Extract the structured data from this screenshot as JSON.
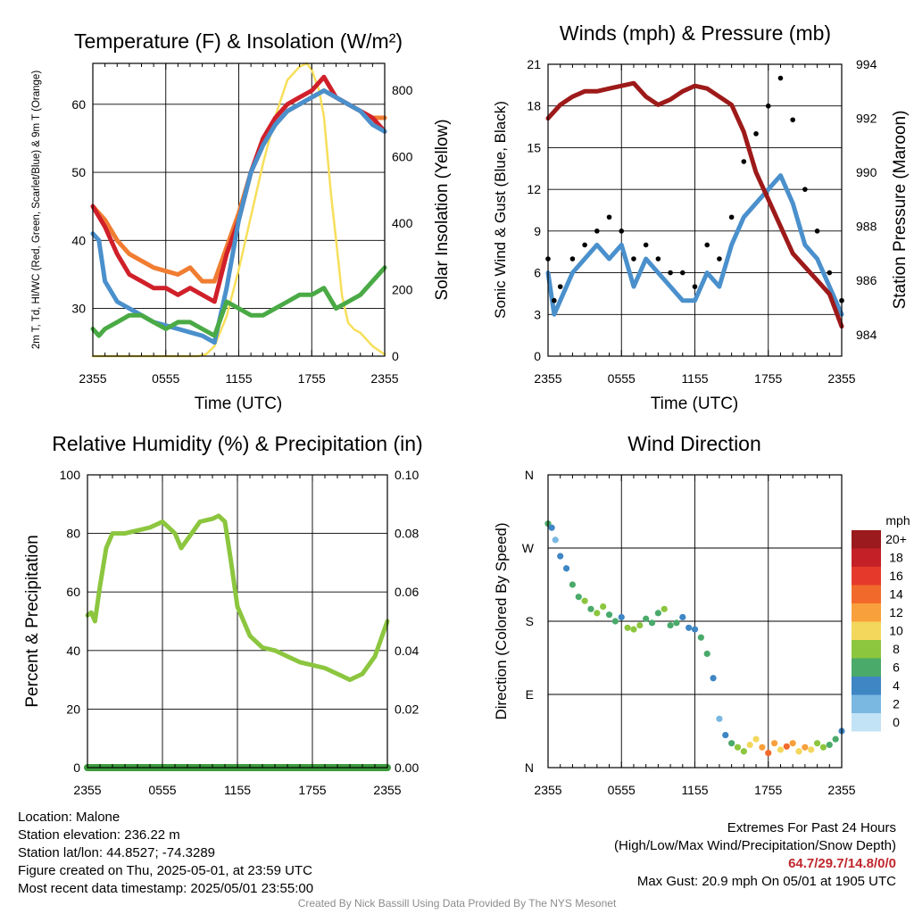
{
  "colors": {
    "red": "#d0202a",
    "green": "#4aaa45",
    "blue": "#4a90cc",
    "orange": "#f07d32",
    "yellow": "#f7df5a",
    "maroon": "#9e1a1a",
    "black": "#000000",
    "rh": "#8cc63f",
    "precip": "#3d9b3d"
  },
  "chart_data": [
    {
      "id": "temp",
      "type": "line",
      "title": "Temperature (F) & Insolation (W/m²)",
      "xlabel": "Time (UTC)",
      "ylabel": "2m T, Td, HI/WC (Red, Green, Scarlet/Blue) & 9m T (Orange)",
      "y2label": "Solar Insolation (Yellow)",
      "xticks": [
        "2355",
        "0555",
        "1155",
        "1755",
        "2355"
      ],
      "yticks": [
        30,
        40,
        50,
        60
      ],
      "y2ticks": [
        0,
        200,
        400,
        600,
        800
      ],
      "ylim": [
        23,
        66
      ],
      "y2lim": [
        0,
        880
      ],
      "xlim": [
        0,
        24
      ],
      "grid": true,
      "series": [
        {
          "color": "yellow",
          "axis": "y2",
          "x": [
            0,
            6,
            8.6,
            9.3,
            10,
            11,
            12,
            13,
            14,
            15,
            16,
            17,
            17.6,
            18,
            18.6,
            19,
            19.3,
            19.6,
            20,
            20.5,
            21,
            21.5,
            22,
            23,
            24
          ],
          "y": [
            0,
            0,
            0,
            5,
            30,
            120,
            260,
            420,
            580,
            720,
            830,
            870,
            880,
            860,
            800,
            720,
            600,
            480,
            350,
            180,
            100,
            80,
            70,
            30,
            5
          ]
        },
        {
          "color": "orange",
          "axis": "y1",
          "x": [
            0,
            1,
            2,
            3,
            4,
            5,
            6,
            7,
            8,
            9,
            10,
            11,
            12,
            13,
            14,
            15,
            16,
            17,
            18,
            19,
            20,
            21,
            22,
            23,
            24
          ],
          "y": [
            45,
            43,
            40,
            38,
            37,
            36,
            35.5,
            35,
            36,
            34,
            34,
            39,
            44,
            50,
            54,
            57,
            59,
            60,
            61,
            62,
            61,
            60,
            59,
            58,
            58
          ]
        },
        {
          "color": "red",
          "axis": "y1",
          "x": [
            0,
            1,
            2,
            3,
            4,
            5,
            6,
            7,
            8,
            9,
            10,
            11,
            12,
            13,
            14,
            15,
            16,
            17,
            18,
            19,
            20,
            21,
            22,
            23,
            24
          ],
          "y": [
            45,
            42,
            38,
            35,
            34,
            33,
            33,
            32,
            33,
            32,
            31,
            38,
            43,
            50,
            55,
            58,
            60,
            61,
            62,
            64,
            61,
            60,
            59,
            58,
            56
          ]
        },
        {
          "color": "blue",
          "axis": "y1",
          "x": [
            0,
            0.5,
            1,
            2,
            3,
            4,
            5,
            6,
            7,
            8,
            9,
            10,
            11,
            12,
            13,
            14,
            15,
            16,
            17,
            18,
            19,
            20,
            21,
            22,
            23,
            24
          ],
          "y": [
            41,
            40,
            34,
            31,
            30,
            29,
            28,
            27.5,
            27,
            26.5,
            26,
            25,
            33,
            43,
            50,
            54,
            57,
            59,
            60,
            61,
            62,
            61,
            60,
            59,
            57,
            56
          ]
        },
        {
          "color": "green",
          "axis": "y1",
          "x": [
            0,
            0.5,
            1,
            2,
            3,
            4,
            5,
            6,
            7,
            8,
            9,
            10,
            11,
            12,
            13,
            14,
            15,
            16,
            17,
            18,
            19,
            20,
            21,
            22,
            23,
            24
          ],
          "y": [
            27,
            26,
            27,
            28,
            29,
            29,
            28,
            27,
            28,
            28,
            27,
            26,
            31,
            30,
            29,
            29,
            30,
            31,
            32,
            32,
            33,
            30,
            31,
            32,
            34,
            36
          ]
        }
      ]
    },
    {
      "id": "wind",
      "type": "line",
      "title": "Winds (mph) & Pressure (mb)",
      "xlabel": "Time (UTC)",
      "ylabel": "Sonic Wind & Gust (Blue, Black)",
      "y2label": "Station Pressure (Maroon)",
      "xticks": [
        "2355",
        "0555",
        "1155",
        "1755",
        "2355"
      ],
      "yticks": [
        0,
        3,
        6,
        9,
        12,
        15,
        18,
        21
      ],
      "y2ticks": [
        984,
        986,
        988,
        990,
        992,
        994
      ],
      "ylim": [
        0,
        21
      ],
      "y2lim": [
        983.2,
        994
      ],
      "xlim": [
        0,
        24
      ],
      "grid": true,
      "series": [
        {
          "color": "blue",
          "axis": "y1",
          "x": [
            0,
            0.5,
            1,
            2,
            3,
            4,
            5,
            6,
            7,
            8,
            9,
            10,
            11,
            12,
            13,
            14,
            15,
            16,
            17,
            18,
            19,
            20,
            21,
            22,
            23,
            24
          ],
          "y": [
            6,
            3,
            4,
            6,
            7,
            8,
            7,
            8,
            5,
            7,
            6,
            5,
            4,
            4,
            6,
            5,
            8,
            10,
            11,
            12,
            13,
            11,
            8,
            7,
            5,
            3
          ]
        },
        {
          "color": "black",
          "axis": "y1",
          "type": "scatter",
          "x": [
            0,
            0.5,
            1,
            2,
            3,
            4,
            5,
            6,
            7,
            8,
            9,
            10,
            11,
            12,
            13,
            14,
            15,
            16,
            17,
            18,
            19,
            20,
            21,
            22,
            23,
            24
          ],
          "y": [
            7,
            4,
            5,
            7,
            8,
            9,
            10,
            9,
            7,
            8,
            7,
            6,
            6,
            5,
            8,
            7,
            10,
            14,
            16,
            18,
            20,
            17,
            12,
            9,
            6,
            4
          ]
        },
        {
          "color": "maroon",
          "axis": "y2",
          "x": [
            0,
            1,
            2,
            3,
            4,
            5,
            6,
            7,
            8,
            9,
            10,
            11,
            12,
            13,
            14,
            15,
            15.5,
            16,
            17,
            18,
            19,
            20,
            21,
            22,
            23,
            24
          ],
          "y": [
            992,
            992.5,
            992.8,
            993,
            993,
            993.1,
            993.2,
            993.3,
            992.8,
            992.5,
            992.7,
            993,
            993.2,
            993.1,
            992.8,
            992.5,
            992,
            991.5,
            990,
            989,
            988,
            987,
            986.5,
            986,
            985.5,
            984.3
          ]
        }
      ]
    },
    {
      "id": "rh",
      "type": "line",
      "title": "Relative Humidity (%) & Precipitation (in)",
      "xlabel": "",
      "ylabel": "Percent & Precipitation",
      "xticks": [
        "2355",
        "0555",
        "1155",
        "1755",
        "2355"
      ],
      "yticks": [
        0,
        20,
        40,
        60,
        80,
        100
      ],
      "y2ticks": [
        "0.00",
        "0.02",
        "0.04",
        "0.06",
        "0.08",
        "0.10"
      ],
      "ylim": [
        0,
        100
      ],
      "xlim": [
        0,
        24
      ],
      "grid": true,
      "series": [
        {
          "color": "rh",
          "axis": "y1",
          "x": [
            0,
            0.3,
            0.6,
            1,
            1.5,
            2,
            3,
            4,
            5,
            6,
            7,
            7.5,
            8,
            9,
            10,
            10.5,
            11,
            11.5,
            12,
            13,
            14,
            15,
            16,
            17,
            18,
            19,
            20,
            21,
            22,
            23,
            24
          ],
          "y": [
            52,
            53,
            50,
            62,
            75,
            80,
            80,
            81,
            82,
            84,
            80,
            75,
            78,
            84,
            85,
            86,
            84,
            70,
            55,
            45,
            41,
            40,
            38,
            36,
            35,
            34,
            32,
            30,
            32,
            38,
            50
          ]
        },
        {
          "color": "precip",
          "axis": "y2",
          "x": [
            0,
            24
          ],
          "y": [
            0,
            0
          ]
        }
      ]
    },
    {
      "id": "wdir",
      "type": "scatter",
      "title": "Wind Direction",
      "xlabel": "",
      "ylabel": "Direction (Colored By Speed)",
      "xticks": [
        "2355",
        "0555",
        "1155",
        "1755",
        "2355"
      ],
      "yticks": [
        "N",
        "E",
        "S",
        "W",
        "N"
      ],
      "ylim": [
        0,
        360
      ],
      "xlim": [
        0,
        24
      ],
      "grid": true,
      "legend_title": "mph",
      "legend_labels": [
        "20+",
        "18",
        "16",
        "14",
        "12",
        "10",
        "8",
        "6",
        "4",
        "2",
        "0"
      ],
      "legend_colors": [
        "#9b1a1d",
        "#c42027",
        "#e53a2b",
        "#f26a2b",
        "#f8a03b",
        "#f3d75d",
        "#8cc63f",
        "#4aaa6a",
        "#3f86c4",
        "#7ab8e2",
        "#c2e3f5"
      ],
      "points": {
        "x": [
          0,
          0.3,
          0.6,
          1,
          1.5,
          2,
          2.5,
          3,
          3.5,
          4,
          4.5,
          5,
          5.5,
          6,
          6.5,
          7,
          7.5,
          8,
          8.5,
          9,
          9.5,
          10,
          10.5,
          11,
          11.5,
          12,
          12.5,
          13,
          13.5,
          14,
          14.5,
          15,
          15.5,
          16,
          16.5,
          17,
          17.5,
          18,
          18.5,
          19,
          19.5,
          20,
          20.5,
          21,
          21.5,
          22,
          22.5,
          23,
          23.5,
          24
        ],
        "y": [
          300,
          295,
          280,
          260,
          245,
          225,
          210,
          205,
          195,
          190,
          198,
          188,
          180,
          185,
          172,
          170,
          175,
          183,
          178,
          190,
          195,
          175,
          178,
          185,
          172,
          170,
          160,
          140,
          110,
          60,
          40,
          30,
          25,
          20,
          28,
          35,
          25,
          18,
          30,
          22,
          26,
          30,
          20,
          25,
          22,
          30,
          25,
          28,
          35,
          45
        ],
        "speed": [
          6,
          3,
          2,
          3,
          4,
          5,
          6,
          7,
          6,
          7,
          8,
          6,
          5,
          4,
          8,
          7,
          8,
          6,
          5,
          6,
          7,
          6,
          5,
          4,
          3,
          4,
          5,
          6,
          4,
          2,
          3,
          6,
          8,
          7,
          9,
          10,
          12,
          14,
          11,
          10,
          13,
          12,
          9,
          11,
          10,
          8,
          7,
          5,
          6,
          4
        ]
      }
    }
  ],
  "footer": {
    "location": "Location: Malone",
    "elevation": "Station elevation: 236.22 m",
    "latlon": "Station lat/lon: 44.8527; -74.3289",
    "created": "Figure created on Thu, 2025-05-01, at 23:59 UTC",
    "recent": "Most recent data timestamp: 2025/05/01 23:55:00",
    "extremes_title": "Extremes For Past 24 Hours",
    "extremes_desc": "(High/Low/Max Wind/Precipitation/Snow Depth)",
    "extremes_values": "64.7/29.7/14.8/0/0",
    "max_gust": "Max Gust: 20.9 mph On 05/01 at 1905 UTC",
    "credit": "Created By Nick Bassill Using Data Provided By The NYS Mesonet"
  }
}
